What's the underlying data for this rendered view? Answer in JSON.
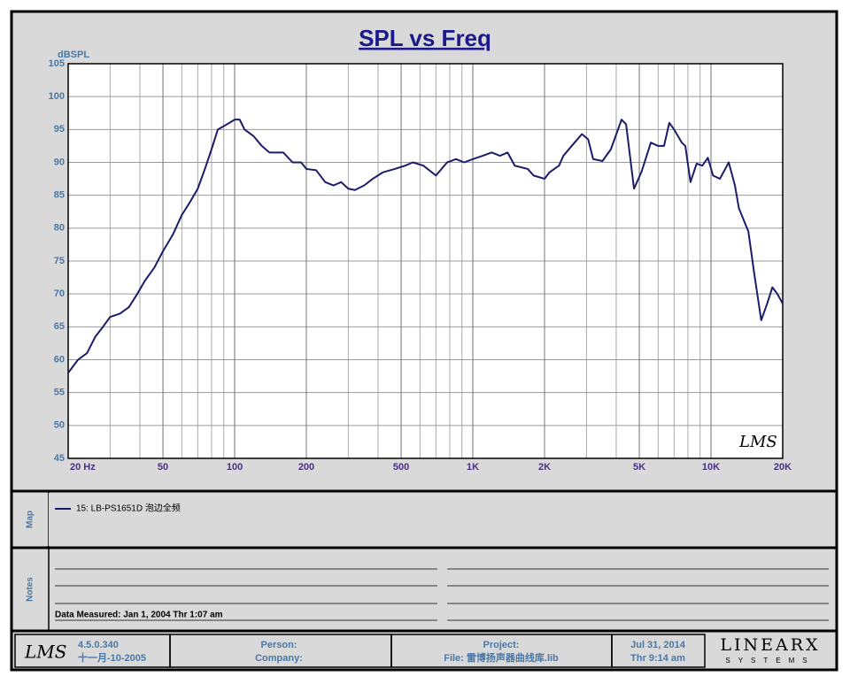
{
  "chart_data": {
    "type": "line",
    "title": "SPL vs Freq",
    "y_label": "dBSPL",
    "x": [
      20,
      22,
      24,
      26,
      28,
      30,
      33,
      36,
      39,
      42,
      46,
      50,
      55,
      60,
      65,
      70,
      75,
      80,
      85,
      90,
      95,
      100,
      105,
      110,
      120,
      130,
      140,
      160,
      175,
      190,
      200,
      220,
      240,
      260,
      280,
      300,
      320,
      350,
      380,
      420,
      470,
      520,
      560,
      620,
      700,
      780,
      850,
      920,
      1000,
      1100,
      1200,
      1300,
      1400,
      1500,
      1700,
      1800,
      2000,
      2100,
      2300,
      2400,
      2600,
      2870,
      3050,
      3200,
      3500,
      3800,
      4210,
      4400,
      4750,
      5100,
      5590,
      6000,
      6350,
      6680,
      7000,
      7540,
      7800,
      8200,
      8700,
      9200,
      9700,
      10200,
      10900,
      11870,
      12600,
      13100,
      14350,
      15200,
      16250,
      17200,
      18100,
      19000,
      20000
    ],
    "series": [
      {
        "name": "15: LB-PS1651D 泡边全频",
        "color": "#1c1c6b",
        "values": [
          58,
          60,
          61,
          63.5,
          65,
          66.5,
          67,
          68,
          70,
          72,
          74,
          76.5,
          79,
          82,
          84,
          86,
          89,
          92,
          95,
          95.5,
          96,
          96.5,
          96.5,
          95,
          94,
          92.5,
          91.5,
          91.5,
          90,
          90,
          89,
          88.8,
          87,
          86.5,
          87,
          86,
          85.8,
          86.5,
          87.5,
          88.5,
          89,
          89.5,
          90,
          89.5,
          88,
          90,
          90.5,
          90,
          90.5,
          91,
          91.5,
          91,
          91.5,
          89.5,
          89,
          88,
          87.5,
          88.5,
          89.5,
          91,
          92.5,
          94.3,
          93.5,
          90.5,
          90.2,
          92,
          96.5,
          95.8,
          86,
          88.5,
          93,
          92.5,
          92.5,
          96,
          95,
          93,
          92.5,
          87,
          89.8,
          89.5,
          90.7,
          88,
          87.5,
          90,
          86.5,
          83,
          79.5,
          73,
          66,
          68.5,
          71,
          70,
          68.5
        ]
      }
    ],
    "xlim": [
      20,
      20000
    ],
    "log_x": true,
    "xticks": [
      {
        "value": 20,
        "label": "20 Hz"
      },
      50,
      100,
      200,
      500,
      {
        "value": 1000,
        "label": "1K"
      },
      {
        "value": 2000,
        "label": "2K"
      },
      {
        "value": 5000,
        "label": "5K"
      },
      {
        "value": 10000,
        "label": "10K"
      },
      {
        "value": 20000,
        "label": "20K"
      }
    ],
    "ylim": [
      45,
      105
    ],
    "yticks": [
      45,
      50,
      55,
      60,
      65,
      70,
      75,
      80,
      85,
      90,
      95,
      100,
      105
    ],
    "grid": true
  },
  "panels": {
    "logo": "LMS",
    "map_label": "Map",
    "notes_label": "Notes",
    "data_measured": "Data Measured: Jan 1, 2004 Thr 1:07 am",
    "version": "4.5.0.340",
    "build_date": "十一月-10-2005",
    "person": "Person:",
    "company": "Company:",
    "project": "Project:",
    "file": "File: 雷博扬声器曲线库.lib",
    "date": "Jul 31, 2014",
    "time": "Thr 9:14 am",
    "brand": "LINEARX",
    "brand_sub": "SYSTEMS"
  }
}
